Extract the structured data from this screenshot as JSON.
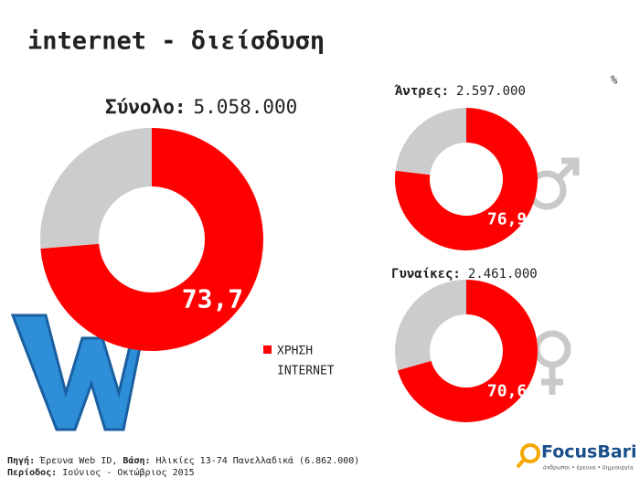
{
  "title": "internet - διείσδυση",
  "unit": "%",
  "chart_data": [
    {
      "type": "donut",
      "title": "Σύνολο:",
      "total": "5.058.000",
      "categories": [
        "ΧΡΗΣΗ INTERNET",
        null
      ],
      "values": [
        73.7,
        26.3
      ],
      "value_labels": [
        "73,7",
        null
      ],
      "colors": [
        "#ff0000",
        "#cccccc"
      ]
    },
    {
      "type": "donut",
      "title": "Άντρες:",
      "total": "2.597.000",
      "values": [
        76.9,
        23.1
      ],
      "value_labels": [
        "76,9",
        null
      ],
      "colors": [
        "#ff0000",
        "#cccccc"
      ]
    },
    {
      "type": "donut",
      "title": "Γυναίκες:",
      "total": "2.461.000",
      "values": [
        70.6,
        29.4
      ],
      "value_labels": [
        "70,6",
        null
      ],
      "colors": [
        "#ff0000",
        "#cccccc"
      ]
    }
  ],
  "legend_lines": [
    "ΧΡΗΣΗ",
    "INTERNET"
  ],
  "source": {
    "label1": "Πηγή:",
    "text1": "Έρευνα Web ID,",
    "label2": "Βάση:",
    "text2": "Ηλικίες 13-74 Πανελλαδικά (6.862.000)",
    "label3": "Περίοδος:",
    "text3": "Ιούνιος - Οκτώβριος 2015"
  },
  "logo": {
    "name": "FocusBari",
    "tagline": "άνθρωποι • έρευνα • δημιουργία"
  }
}
